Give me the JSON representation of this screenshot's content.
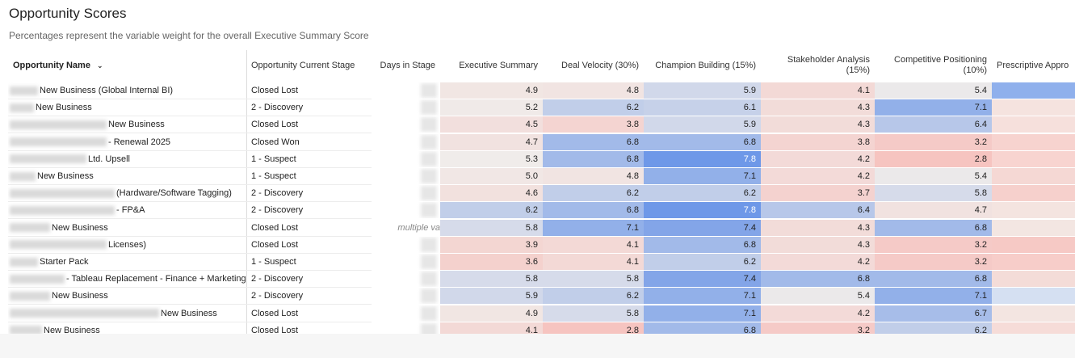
{
  "header": {
    "title": "Opportunity Scores",
    "subtitle": "Percentages represent the variable weight for the overall Executive Summary Score"
  },
  "table": {
    "columns": [
      "Opportunity Name",
      "Opportunity Current Stage",
      "Days in Stage",
      "Executive Summary",
      "Deal Velocity (30%)",
      "Champion Building (15%)",
      "Stakeholder Analysis (15%)",
      "Competitive Positioning (10%)",
      "Prescriptive Appro"
    ],
    "rows": [
      [
        "New Business (Global Internal BI)",
        "Closed Lost",
        null,
        "4.9",
        "4.8",
        "5.9",
        "4.1",
        "5.4"
      ],
      [
        "New Business",
        "2 - Discovery",
        null,
        "5.2",
        "6.2",
        "6.1",
        "4.3",
        "7.1"
      ],
      [
        "New Business",
        "Closed Lost",
        null,
        "4.5",
        "3.8",
        "5.9",
        "4.3",
        "6.4"
      ],
      [
        "- Renewal 2025",
        "Closed Won",
        null,
        "4.7",
        "6.8",
        "6.8",
        "3.8",
        "3.2"
      ],
      [
        "Ltd. Upsell",
        "1 - Suspect",
        null,
        "5.3",
        "6.8",
        "7.8",
        "4.2",
        "2.8"
      ],
      [
        "New Business",
        "1 - Suspect",
        null,
        "5.0",
        "4.8",
        "7.1",
        "4.2",
        "5.4"
      ],
      [
        "(Hardware/Software Tagging)",
        "2 - Discovery",
        null,
        "4.6",
        "6.2",
        "6.2",
        "3.7",
        "5.8"
      ],
      [
        "- FP&A",
        "2 - Discovery",
        null,
        "6.2",
        "6.8",
        "7.8",
        "6.4",
        "4.7"
      ],
      [
        "New Business",
        "Closed Lost",
        "multiple va",
        "5.8",
        "7.1",
        "7.4",
        "4.3",
        "6.8"
      ],
      [
        "Licenses)",
        "Closed Lost",
        null,
        "3.9",
        "4.1",
        "6.8",
        "4.3",
        "3.2"
      ],
      [
        "Starter Pack",
        "1 - Suspect",
        null,
        "3.6",
        "4.1",
        "6.2",
        "4.2",
        "3.2"
      ],
      [
        "- Tableau Replacement - Finance + Marketing",
        "2 - Discovery",
        null,
        "5.8",
        "5.8",
        "7.4",
        "6.8",
        "6.8"
      ],
      [
        "New Business",
        "2 - Discovery",
        null,
        "5.9",
        "6.2",
        "7.1",
        "5.4",
        "7.1"
      ],
      [
        "New Business",
        "Closed Lost",
        null,
        "4.9",
        "5.8",
        "7.1",
        "4.2",
        "6.7"
      ],
      [
        "New Business",
        "Closed Lost",
        null,
        "4.1",
        "2.8",
        "6.8",
        "3.2",
        "6.2"
      ]
    ]
  }
}
